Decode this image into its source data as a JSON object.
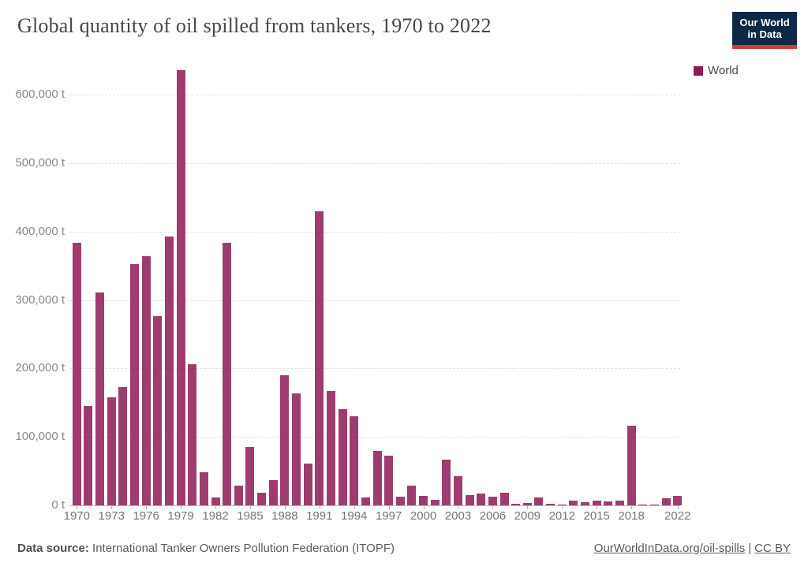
{
  "header": {
    "title": "Global quantity of oil spilled from tankers, 1970 to 2022",
    "logo": {
      "line1": "Our World",
      "line2": "in Data",
      "bg_color": "#0b2947",
      "stripe_color": "#d13c32"
    }
  },
  "legend": {
    "label": "World"
  },
  "chart_data": {
    "type": "bar",
    "title": "Global quantity of oil spilled from tankers, 1970 to 2022",
    "series_name": "World",
    "series_color": "#8d1a56",
    "bar_opacity": 0.85,
    "unit": "t",
    "grid": true,
    "legend_position": "top-right",
    "ylim": [
      0,
      650000
    ],
    "x": [
      1970,
      1971,
      1972,
      1973,
      1974,
      1975,
      1976,
      1977,
      1978,
      1979,
      1980,
      1981,
      1982,
      1983,
      1984,
      1985,
      1986,
      1987,
      1988,
      1989,
      1990,
      1991,
      1992,
      1993,
      1994,
      1995,
      1996,
      1997,
      1998,
      1999,
      2000,
      2001,
      2002,
      2003,
      2004,
      2005,
      2006,
      2007,
      2008,
      2009,
      2010,
      2011,
      2012,
      2013,
      2014,
      2015,
      2016,
      2017,
      2018,
      2019,
      2020,
      2021,
      2022
    ],
    "values": [
      383000,
      145000,
      311000,
      158000,
      173000,
      352000,
      364000,
      276000,
      393000,
      636000,
      206000,
      48000,
      12000,
      384000,
      29000,
      85000,
      19000,
      37000,
      190000,
      164000,
      61000,
      430000,
      167000,
      140000,
      130000,
      12000,
      80000,
      72000,
      13000,
      29000,
      14000,
      8000,
      67000,
      43000,
      15000,
      17000,
      13000,
      18000,
      2000,
      4000,
      11000,
      2000,
      1000,
      7000,
      5000,
      7000,
      6000,
      7000,
      116000,
      1000,
      1000,
      10000,
      14000
    ],
    "yticks": [
      {
        "value": 0,
        "label": "0 t"
      },
      {
        "value": 100000,
        "label": "100,000 t"
      },
      {
        "value": 200000,
        "label": "200,000 t"
      },
      {
        "value": 300000,
        "label": "300,000 t"
      },
      {
        "value": 400000,
        "label": "400,000 t"
      },
      {
        "value": 500000,
        "label": "500,000 t"
      },
      {
        "value": 600000,
        "label": "600,000 t"
      }
    ],
    "xticks": [
      1970,
      1973,
      1976,
      1979,
      1982,
      1985,
      1988,
      1991,
      1994,
      1997,
      2000,
      2003,
      2006,
      2009,
      2012,
      2015,
      2018,
      2022
    ]
  },
  "footer": {
    "source_prefix": "Data source:",
    "source_text": "International Tanker Owners Pollution Federation (ITOPF)",
    "link1": "OurWorldInData.org/oil-spills",
    "separator": "|",
    "link2": "CC BY"
  }
}
